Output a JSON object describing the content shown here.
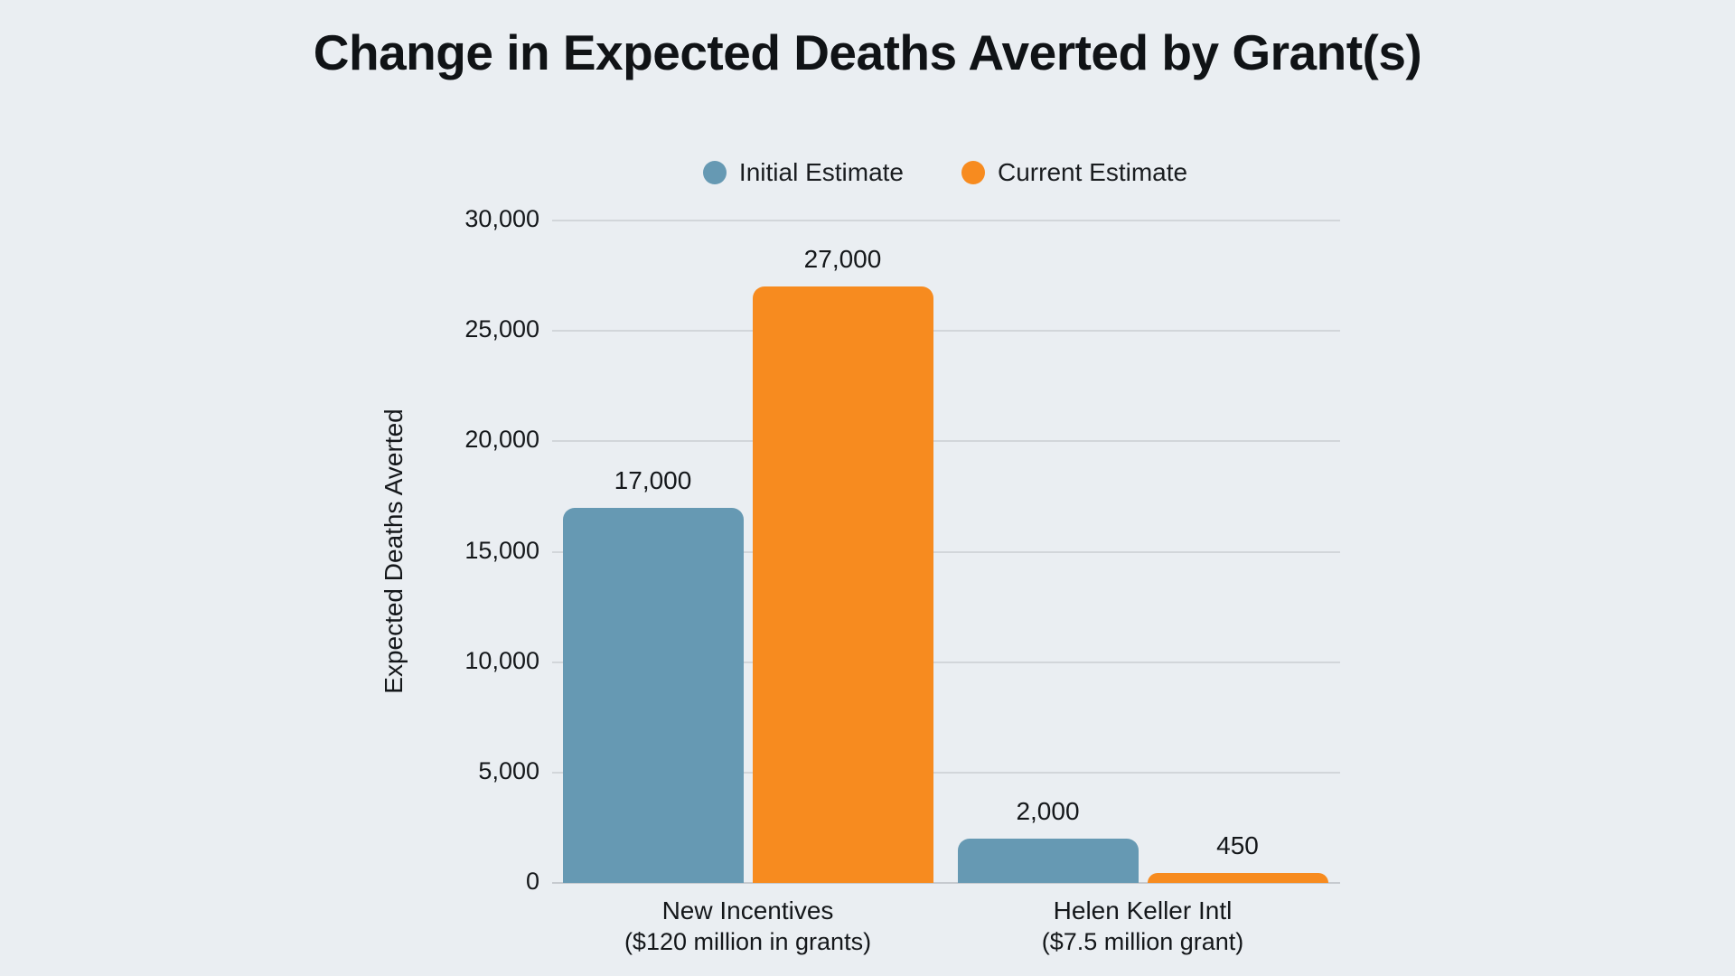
{
  "title": "Change in Expected Deaths Averted by Grant(s)",
  "colors": {
    "background": "#eaeef2",
    "gridline": "#d2d6da",
    "axis_line": "#c6cacf",
    "text": "#14171a",
    "initial_estimate": "#6699b3",
    "current_estimate": "#f78b1f"
  },
  "chart_data": {
    "type": "bar",
    "title": "Change in Expected Deaths Averted by Grant(s)",
    "xlabel": "",
    "ylabel": "Expected Deaths Averted",
    "categories": [
      {
        "label": "New Incentives",
        "sublabel": "($120 million in grants)"
      },
      {
        "label": "Helen Keller Intl",
        "sublabel": "($7.5 million grant)"
      }
    ],
    "series": [
      {
        "name": "Initial Estimate",
        "color": "#6699b3",
        "values": [
          17000,
          2000
        ],
        "labels": [
          "17,000",
          "2,000"
        ]
      },
      {
        "name": "Current Estimate",
        "color": "#f78b1f",
        "values": [
          27000,
          450
        ],
        "labels": [
          "27,000",
          "450"
        ]
      }
    ],
    "ylim": [
      0,
      30000
    ],
    "yticks": [
      0,
      5000,
      10000,
      15000,
      20000,
      25000,
      30000
    ],
    "ytick_labels": [
      "0",
      "5,000",
      "10,000",
      "15,000",
      "20,000",
      "25,000",
      "30,000"
    ],
    "grid": true,
    "legend_position": "top-center"
  }
}
